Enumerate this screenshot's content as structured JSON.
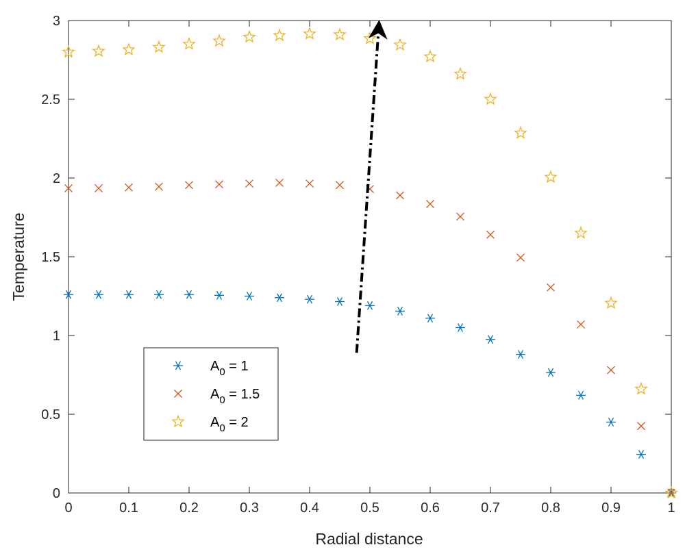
{
  "chart_data": {
    "type": "scatter",
    "xlabel": "Radial distance",
    "ylabel": "Temperature",
    "xlim": [
      0,
      1
    ],
    "ylim": [
      0,
      3
    ],
    "xticks": [
      0,
      0.1,
      0.2,
      0.3,
      0.4,
      0.5,
      0.6,
      0.7,
      0.8,
      0.9,
      1
    ],
    "xtick_labels": [
      "0",
      "0.1",
      "0.2",
      "0.3",
      "0.4",
      "0.5",
      "0.6",
      "0.7",
      "0.8",
      "0.9",
      "1"
    ],
    "yticks": [
      0,
      0.5,
      1,
      1.5,
      2,
      2.5,
      3
    ],
    "ytick_labels": [
      "0",
      "0.5",
      "1",
      "1.5",
      "2",
      "2.5",
      "3"
    ],
    "grid": false,
    "legend_position": "lower-left",
    "x": [
      0,
      0.05,
      0.1,
      0.15,
      0.2,
      0.25,
      0.3,
      0.35,
      0.4,
      0.45,
      0.5,
      0.55,
      0.6,
      0.65,
      0.7,
      0.75,
      0.8,
      0.85,
      0.9,
      0.95,
      1
    ],
    "series": [
      {
        "name_base": "A",
        "name_sub": "0",
        "name_suffix": " = 1",
        "marker": "asterisk",
        "color": "#0072BD",
        "values": [
          1.26,
          1.26,
          1.26,
          1.26,
          1.26,
          1.255,
          1.25,
          1.24,
          1.23,
          1.215,
          1.19,
          1.155,
          1.11,
          1.05,
          0.975,
          0.88,
          0.765,
          0.62,
          0.45,
          0.245,
          0
        ]
      },
      {
        "name_base": "A",
        "name_sub": "0",
        "name_suffix": " = 1.5",
        "marker": "x",
        "color": "#D95319",
        "values": [
          1.935,
          1.935,
          1.94,
          1.945,
          1.955,
          1.96,
          1.965,
          1.97,
          1.965,
          1.955,
          1.93,
          1.89,
          1.835,
          1.755,
          1.64,
          1.495,
          1.305,
          1.07,
          0.78,
          0.425,
          0
        ]
      },
      {
        "name_base": "A",
        "name_sub": "0",
        "name_suffix": " = 2",
        "marker": "star",
        "color": "#EDB120",
        "values": [
          2.8,
          2.805,
          2.815,
          2.83,
          2.85,
          2.87,
          2.895,
          2.905,
          2.915,
          2.91,
          2.885,
          2.845,
          2.77,
          2.66,
          2.5,
          2.285,
          2.005,
          1.65,
          1.205,
          0.66,
          0
        ]
      }
    ],
    "annotations": [
      {
        "type": "arrow",
        "style": "dash-dot",
        "color": "#000000",
        "from": [
          0.478,
          0.89
        ],
        "to": [
          0.515,
          2.98
        ]
      }
    ]
  }
}
